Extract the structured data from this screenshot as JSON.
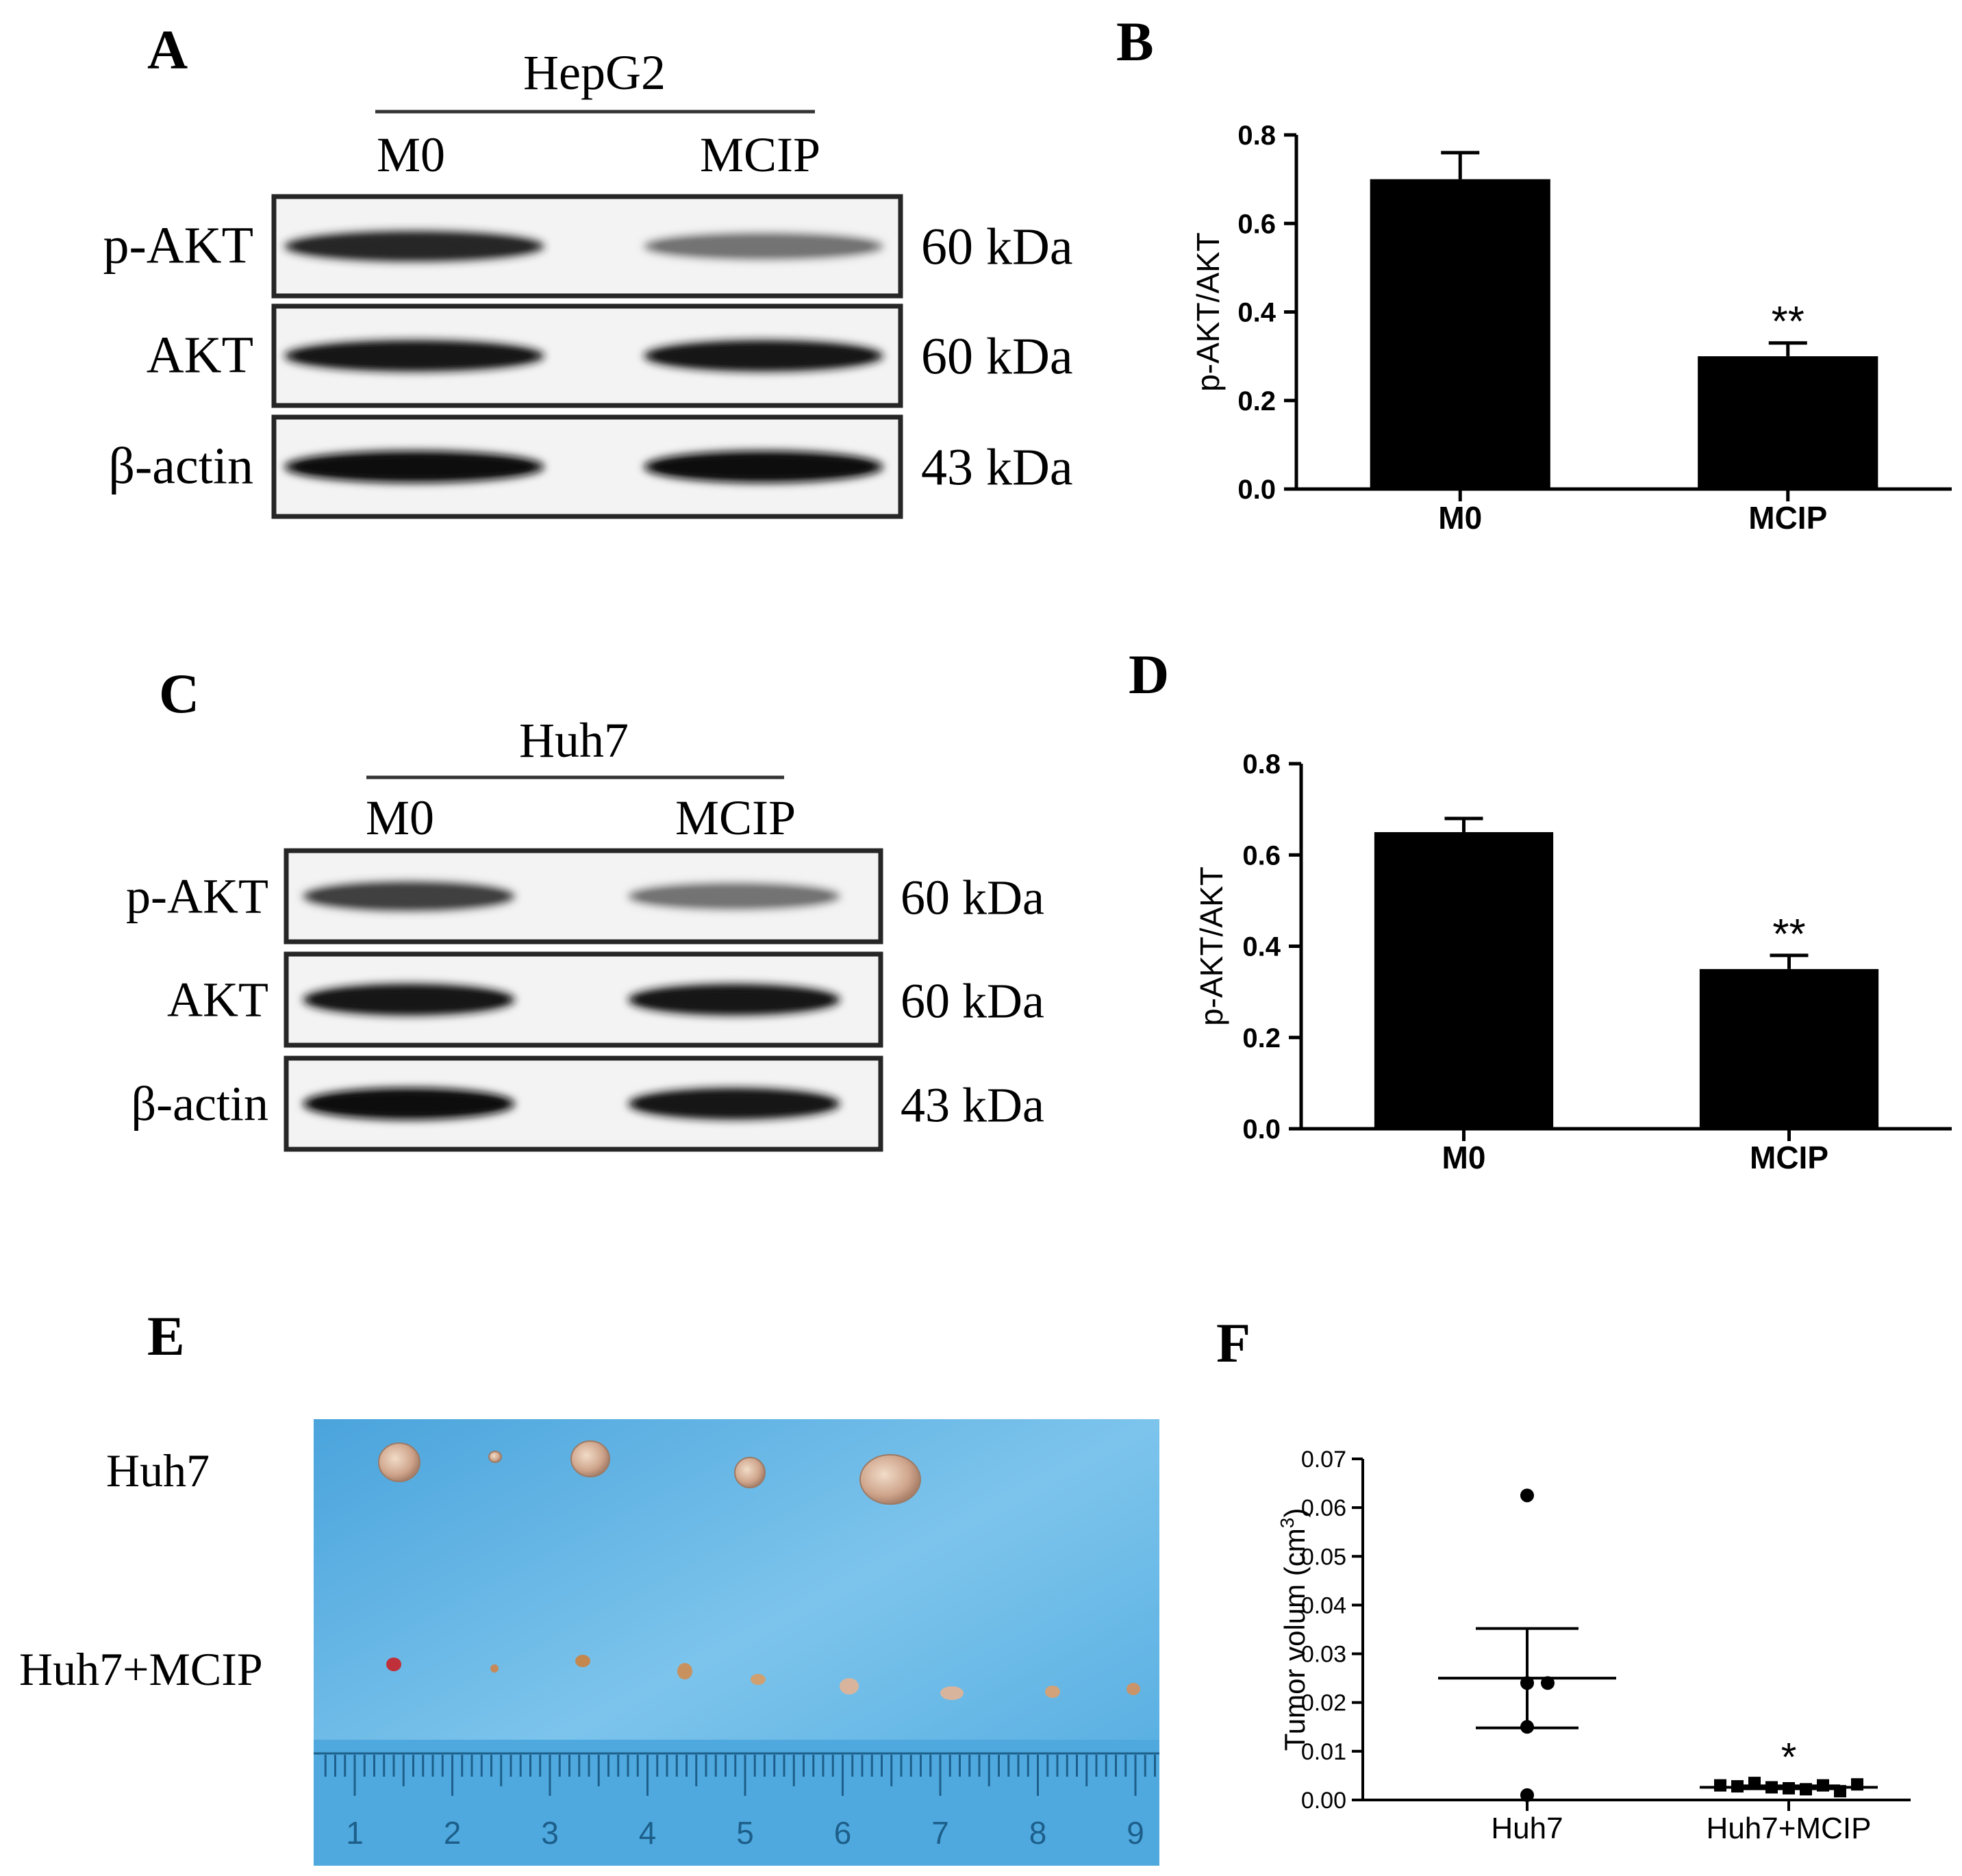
{
  "panels": {
    "A": {
      "letter": "A",
      "cell_line": "HepG2",
      "lanes": [
        "M0",
        "MCIP"
      ],
      "blots": [
        {
          "label": "p-AKT",
          "kda": "60 kDa",
          "band_intensity": [
            0.85,
            0.55
          ]
        },
        {
          "label": "AKT",
          "kda": "60 kDa",
          "band_intensity": [
            0.9,
            0.9
          ]
        },
        {
          "label": "β-actin",
          "kda": "43 kDa",
          "band_intensity": [
            0.95,
            0.95
          ]
        }
      ]
    },
    "C": {
      "letter": "C",
      "cell_line": "Huh7",
      "lanes": [
        "M0",
        "MCIP"
      ],
      "blots": [
        {
          "label": "p-AKT",
          "kda": "60 kDa",
          "band_intensity": [
            0.75,
            0.55
          ]
        },
        {
          "label": "AKT",
          "kda": "60 kDa",
          "band_intensity": [
            0.92,
            0.9
          ]
        },
        {
          "label": "β-actin",
          "kda": "43 kDa",
          "band_intensity": [
            0.95,
            0.92
          ]
        }
      ]
    },
    "E": {
      "letter": "E",
      "row_labels": [
        "Huh7",
        "Huh7+MCIP"
      ],
      "ruler_numbers": [
        "1",
        "2",
        "3",
        "4",
        "5",
        "6",
        "7",
        "8",
        "9"
      ],
      "colors": {
        "background": "#5fb4e3",
        "ruler": "#4aa8de",
        "tumor": "#d9b49c",
        "tumor_red": "#c0303a"
      }
    },
    "B": {
      "letter": "B"
    },
    "D": {
      "letter": "D"
    },
    "F": {
      "letter": "F"
    }
  },
  "chart_data": [
    {
      "type": "bar",
      "panel": "B",
      "categories": [
        "M0",
        "MCIP"
      ],
      "values": [
        0.7,
        0.3
      ],
      "errors": [
        0.06,
        0.03
      ],
      "significance": [
        "",
        "**"
      ],
      "ylabel": "p-AKT/AKT",
      "ylim": [
        0,
        0.8
      ],
      "yticks": [
        "0.0",
        "0.2",
        "0.4",
        "0.6",
        "0.8"
      ],
      "bar_color": "#000000"
    },
    {
      "type": "bar",
      "panel": "D",
      "categories": [
        "M0",
        "MCIP"
      ],
      "values": [
        0.65,
        0.35
      ],
      "errors": [
        0.03,
        0.03
      ],
      "significance": [
        "",
        "**"
      ],
      "ylabel": "p-AKT/AKT",
      "ylim": [
        0,
        0.8
      ],
      "yticks": [
        "0.0",
        "0.2",
        "0.4",
        "0.6",
        "0.8"
      ],
      "bar_color": "#000000"
    },
    {
      "type": "scatter",
      "panel": "F",
      "categories": [
        "Huh7",
        "Huh7+MCIP"
      ],
      "series": [
        {
          "values": [
            0.0625,
            0.024,
            0.024,
            0.015,
            0.001
          ],
          "mean": 0.025,
          "sem_upper": 0.0352,
          "sem_lower": 0.0148,
          "marker": "circle"
        },
        {
          "values": [
            0.003,
            0.0028,
            0.0035,
            0.0026,
            0.0024,
            0.0022,
            0.003,
            0.0018,
            0.0032
          ],
          "mean": 0.0026,
          "sem_upper": 0.0029,
          "sem_lower": 0.0023,
          "marker": "square"
        }
      ],
      "significance": [
        "",
        "*"
      ],
      "ylabel": "Tumor volum (cm",
      "ylabel_superscript": "3",
      "ylabel_close": ")",
      "ylim": [
        0,
        0.07
      ],
      "yticks": [
        "0.00",
        "0.01",
        "0.02",
        "0.03",
        "0.04",
        "0.05",
        "0.06",
        "0.07"
      ]
    }
  ]
}
